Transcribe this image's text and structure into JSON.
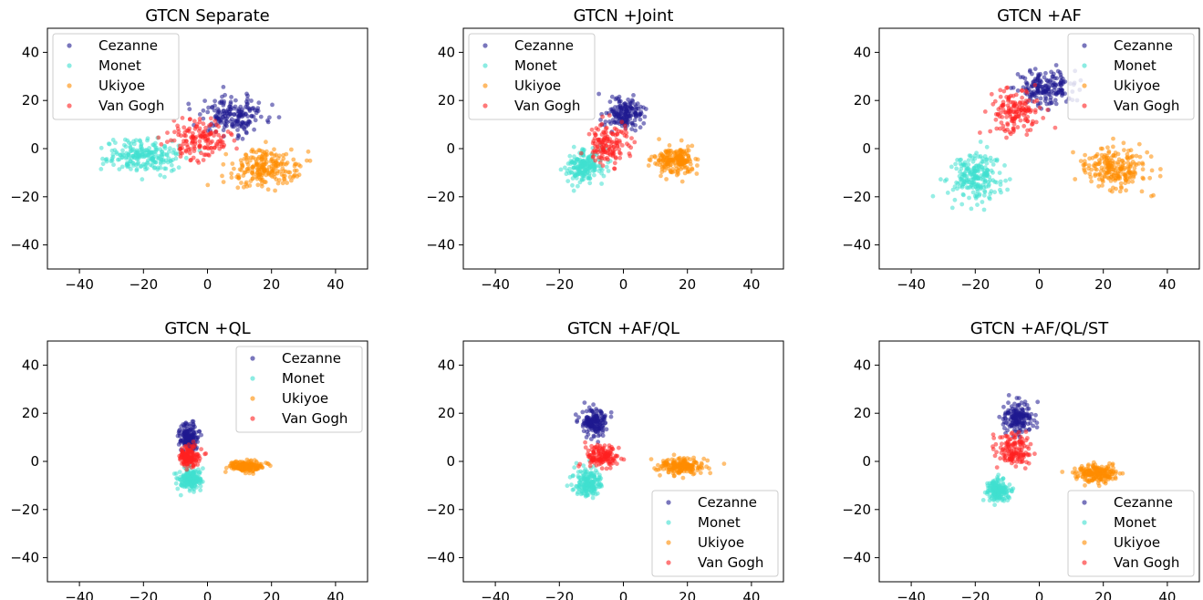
{
  "chart_data": [
    {
      "type": "scatter",
      "title": "GTCN Separate",
      "xlim": [
        -50,
        50
      ],
      "ylim": [
        -50,
        50
      ],
      "xticks": [
        -40,
        -20,
        0,
        20,
        40
      ],
      "yticks": [
        -40,
        -20,
        0,
        20,
        40
      ],
      "legend": "top-left",
      "series": [
        {
          "name": "Cezanne",
          "cluster": {
            "center": [
              8,
              14
            ],
            "spread": [
              10,
              7
            ],
            "count": 180
          }
        },
        {
          "name": "Monet",
          "cluster": {
            "center": [
              -20,
              -3
            ],
            "spread": [
              10,
              6
            ],
            "count": 220
          }
        },
        {
          "name": "Ukiyoe",
          "cluster": {
            "center": [
              18,
              -8
            ],
            "spread": [
              10,
              7
            ],
            "count": 220
          }
        },
        {
          "name": "Van Gogh",
          "cluster": {
            "center": [
              -3,
              4
            ],
            "spread": [
              9,
              7
            ],
            "count": 150
          }
        }
      ]
    },
    {
      "type": "scatter",
      "title": "GTCN +Joint",
      "xlim": [
        -50,
        50
      ],
      "ylim": [
        -50,
        50
      ],
      "xticks": [
        -40,
        -20,
        0,
        20,
        40
      ],
      "yticks": [
        -40,
        -20,
        0,
        20,
        40
      ],
      "legend": "top-left",
      "series": [
        {
          "name": "Cezanne",
          "cluster": {
            "center": [
              0,
              14
            ],
            "spread": [
              5,
              6
            ],
            "count": 170
          }
        },
        {
          "name": "Monet",
          "cluster": {
            "center": [
              -12,
              -7
            ],
            "spread": [
              5,
              6
            ],
            "count": 200
          }
        },
        {
          "name": "Ukiyoe",
          "cluster": {
            "center": [
              16,
              -5
            ],
            "spread": [
              6,
              5
            ],
            "count": 200
          }
        },
        {
          "name": "Van Gogh",
          "cluster": {
            "center": [
              -5,
              2
            ],
            "spread": [
              6,
              7
            ],
            "count": 140
          }
        }
      ]
    },
    {
      "type": "scatter",
      "title": "GTCN +AF",
      "xlim": [
        -50,
        50
      ],
      "ylim": [
        -50,
        50
      ],
      "xticks": [
        -40,
        -20,
        0,
        20,
        40
      ],
      "yticks": [
        -40,
        -20,
        0,
        20,
        40
      ],
      "legend": "top-right",
      "series": [
        {
          "name": "Cezanne",
          "cluster": {
            "center": [
              2,
              25
            ],
            "spread": [
              8,
              7
            ],
            "count": 180
          }
        },
        {
          "name": "Monet",
          "cluster": {
            "center": [
              -20,
              -12
            ],
            "spread": [
              8,
              9
            ],
            "count": 220
          }
        },
        {
          "name": "Ukiyoe",
          "cluster": {
            "center": [
              24,
              -9
            ],
            "spread": [
              9,
              8
            ],
            "count": 220
          }
        },
        {
          "name": "Van Gogh",
          "cluster": {
            "center": [
              -7,
              15
            ],
            "spread": [
              7,
              9
            ],
            "count": 150
          }
        }
      ]
    },
    {
      "type": "scatter",
      "title": "GTCN +QL",
      "xlim": [
        -50,
        50
      ],
      "ylim": [
        -50,
        50
      ],
      "xticks": [
        -40,
        -20,
        0,
        20,
        40
      ],
      "yticks": [
        -40,
        -20,
        0,
        20,
        40
      ],
      "legend": "top-right",
      "series": [
        {
          "name": "Cezanne",
          "cluster": {
            "center": [
              -6,
              10
            ],
            "spread": [
              3,
              5
            ],
            "count": 160
          }
        },
        {
          "name": "Monet",
          "cluster": {
            "center": [
              -5,
              -7
            ],
            "spread": [
              3,
              4
            ],
            "count": 180
          }
        },
        {
          "name": "Ukiyoe",
          "cluster": {
            "center": [
              12,
              -2
            ],
            "spread": [
              5,
              2
            ],
            "count": 180
          }
        },
        {
          "name": "Van Gogh",
          "cluster": {
            "center": [
              -6,
              2
            ],
            "spread": [
              3,
              4
            ],
            "count": 140
          }
        }
      ]
    },
    {
      "type": "scatter",
      "title": "GTCN +AF/QL",
      "xlim": [
        -50,
        50
      ],
      "ylim": [
        -50,
        50
      ],
      "xticks": [
        -40,
        -20,
        0,
        20,
        40
      ],
      "yticks": [
        -40,
        -20,
        0,
        20,
        40
      ],
      "legend": "bottom-right",
      "series": [
        {
          "name": "Cezanne",
          "cluster": {
            "center": [
              -9,
              16
            ],
            "spread": [
              4,
              5
            ],
            "count": 170
          }
        },
        {
          "name": "Monet",
          "cluster": {
            "center": [
              -11,
              -9
            ],
            "spread": [
              4,
              5
            ],
            "count": 180
          }
        },
        {
          "name": "Ukiyoe",
          "cluster": {
            "center": [
              18,
              -2
            ],
            "spread": [
              6,
              3
            ],
            "count": 200
          }
        },
        {
          "name": "Van Gogh",
          "cluster": {
            "center": [
              -7,
              2
            ],
            "spread": [
              5,
              4
            ],
            "count": 140
          }
        }
      ]
    },
    {
      "type": "scatter",
      "title": "GTCN +AF/QL/ST",
      "xlim": [
        -50,
        50
      ],
      "ylim": [
        -50,
        50
      ],
      "xticks": [
        -40,
        -20,
        0,
        20,
        40
      ],
      "yticks": [
        -40,
        -20,
        0,
        20,
        40
      ],
      "legend": "bottom-right",
      "series": [
        {
          "name": "Cezanne",
          "cluster": {
            "center": [
              -7,
              18
            ],
            "spread": [
              4,
              6
            ],
            "count": 170
          }
        },
        {
          "name": "Monet",
          "cluster": {
            "center": [
              -13,
              -12
            ],
            "spread": [
              3,
              4
            ],
            "count": 180
          }
        },
        {
          "name": "Ukiyoe",
          "cluster": {
            "center": [
              18,
              -5
            ],
            "spread": [
              6,
              3
            ],
            "count": 200
          }
        },
        {
          "name": "Van Gogh",
          "cluster": {
            "center": [
              -8,
              5
            ],
            "spread": [
              5,
              6
            ],
            "count": 140
          }
        }
      ]
    }
  ],
  "series_colors": {
    "Cezanne": "#1f1a8f",
    "Monet": "#40e0d0",
    "Ukiyoe": "#ff8c00",
    "Van Gogh": "#ff2020"
  }
}
